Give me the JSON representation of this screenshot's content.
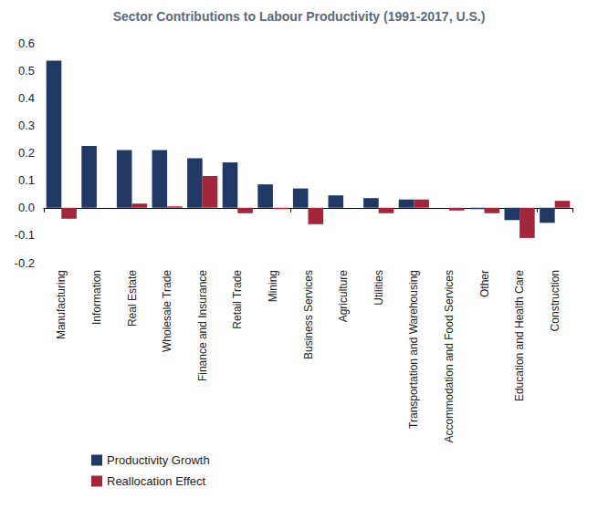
{
  "chart_data": {
    "type": "bar",
    "title": "Sector Contributions to Labour Productivity (1991-2017, U.S.)",
    "categories": [
      "Manufacturing",
      "Information",
      "Real Estate",
      "Wholesale Trade",
      "Finance and Insurance",
      "Retail Trade",
      "Mining",
      "Business Services",
      "Agriculture",
      "Utilities",
      "Transportation and Warehousing",
      "Accommodation and Food Services",
      "Other",
      "Education and Health Care",
      "Construction"
    ],
    "series": [
      {
        "name": "Productivity Growth",
        "color": "#1f3864",
        "values": [
          0.535,
          0.225,
          0.21,
          0.21,
          0.18,
          0.165,
          0.085,
          0.07,
          0.045,
          0.035,
          0.03,
          0,
          -0.005,
          -0.045,
          -0.055
        ]
      },
      {
        "name": "Reallocation Effect",
        "color": "#a3263a",
        "values": [
          -0.04,
          0,
          0.015,
          0.005,
          0.115,
          -0.02,
          -0.005,
          -0.06,
          0,
          -0.02,
          0.03,
          -0.01,
          -0.02,
          -0.11,
          0.025
        ]
      }
    ],
    "ylim": [
      -0.2,
      0.6
    ],
    "yticks": [
      -0.2,
      -0.1,
      {
        "value": 0,
        "label": "0.0"
      },
      0.1,
      0.2,
      0.3,
      0.4,
      0.5,
      0.6
    ],
    "grid": false,
    "legend": "bottom-left"
  }
}
